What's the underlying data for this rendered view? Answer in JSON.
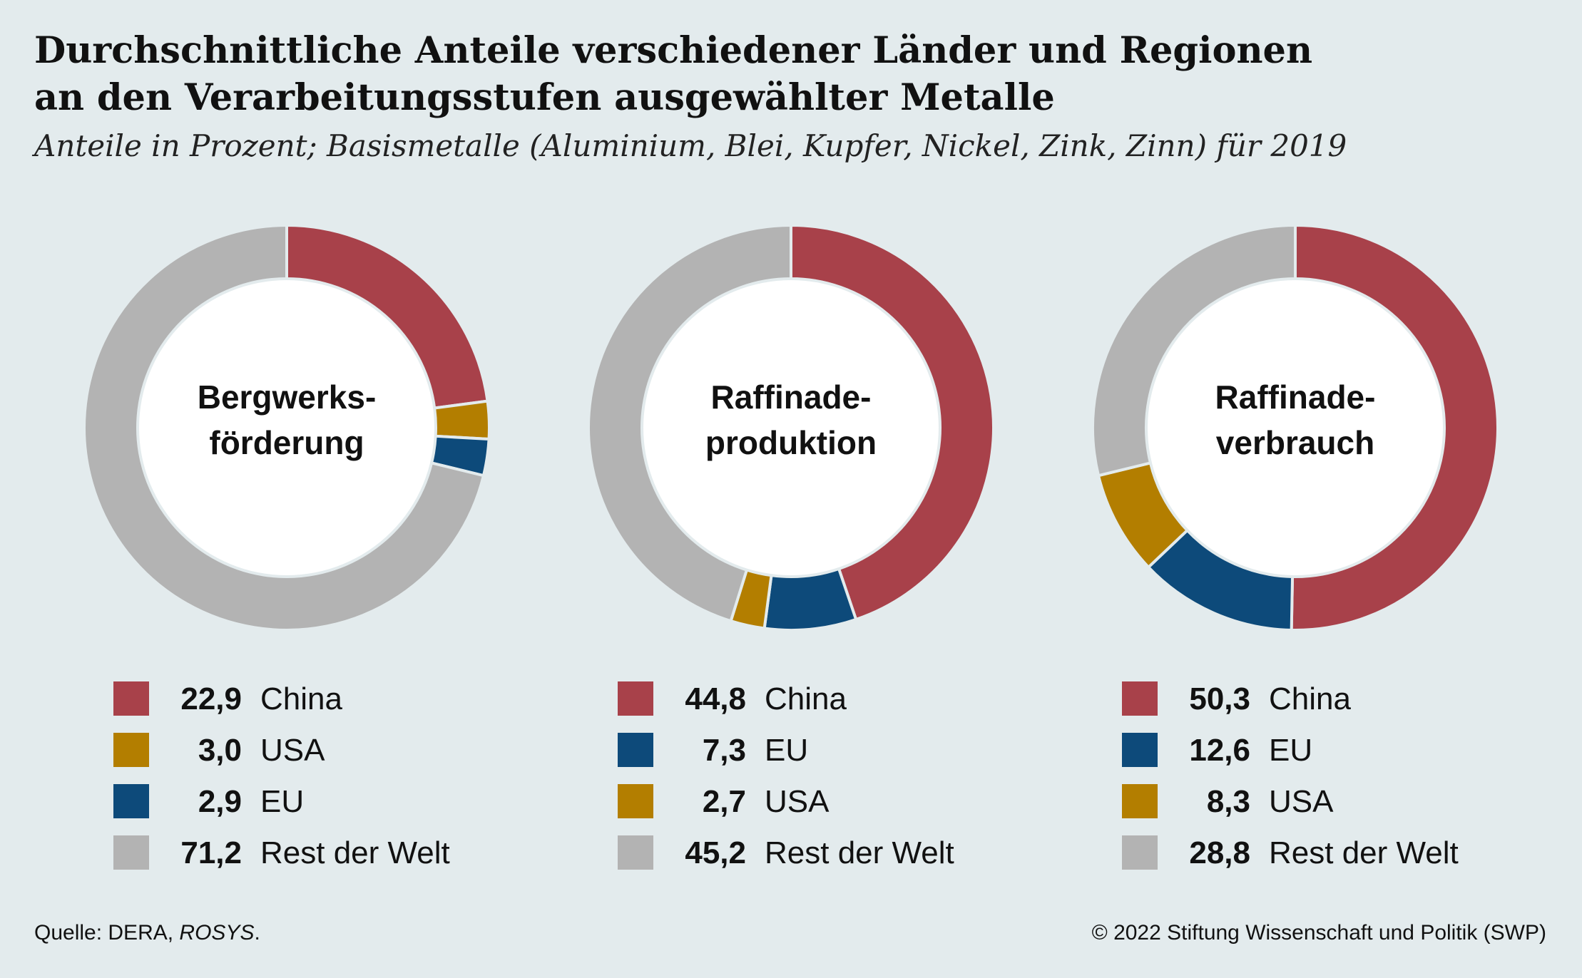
{
  "title_line1": "Durchschnittliche Anteile verschiedener Länder und Regionen",
  "title_line2": "an den Verarbeitungsstufen ausgewählter Metalle",
  "subtitle": "Anteile in Prozent; Basismetalle (Aluminium, Blei, Kupfer, Nickel, Zink, Zinn) für 2019",
  "colors": {
    "China": "#a8414a",
    "USA": "#b37e00",
    "EU": "#0d4a7a",
    "Rest der Welt": "#b3b3b3",
    "background": "#e3ebed",
    "center": "#ffffff"
  },
  "chart_data": [
    {
      "type": "pie",
      "label_line1": "Bergwerks-",
      "label_line2": "förderung",
      "slices": [
        {
          "name": "China",
          "value": 22.9,
          "display": "22,9"
        },
        {
          "name": "USA",
          "value": 3.0,
          "display": "3,0"
        },
        {
          "name": "EU",
          "value": 2.9,
          "display": "2,9"
        },
        {
          "name": "Rest der Welt",
          "value": 71.2,
          "display": "71,2"
        }
      ]
    },
    {
      "type": "pie",
      "label_line1": "Raffinade-",
      "label_line2": "produktion",
      "slices": [
        {
          "name": "China",
          "value": 44.8,
          "display": "44,8"
        },
        {
          "name": "EU",
          "value": 7.3,
          "display": "7,3"
        },
        {
          "name": "USA",
          "value": 2.7,
          "display": "2,7"
        },
        {
          "name": "Rest der Welt",
          "value": 45.2,
          "display": "45,2"
        }
      ]
    },
    {
      "type": "pie",
      "label_line1": "Raffinade-",
      "label_line2": "verbrauch",
      "slices": [
        {
          "name": "China",
          "value": 50.3,
          "display": "50,3"
        },
        {
          "name": "EU",
          "value": 12.6,
          "display": "12,6"
        },
        {
          "name": "USA",
          "value": 8.3,
          "display": "8,3"
        },
        {
          "name": "Rest der Welt",
          "value": 28.8,
          "display": "28,8"
        }
      ]
    }
  ],
  "footer": {
    "source_prefix": "Quelle: DERA, ",
    "source_italic": "ROSYS",
    "source_suffix": ".",
    "copyright": "© 2022 Stiftung Wissenschaft und Politik (SWP)"
  }
}
